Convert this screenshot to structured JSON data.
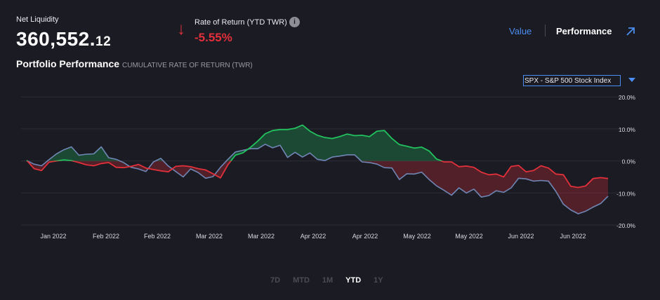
{
  "net_liquidity": {
    "label": "Net Liquidity",
    "value_main": "360,552.",
    "value_cents": "12"
  },
  "rate_of_return": {
    "label": "Rate of Return (YTD TWR)",
    "value": "-5.55%",
    "arrow": "↓",
    "info_icon": "i"
  },
  "view_toggle": {
    "value_label": "Value",
    "performance_label": "Performance"
  },
  "section": {
    "title": "Portfolio Performance",
    "subtitle": "CUMULATIVE RATE OF RETURN (TWR)"
  },
  "benchmark": {
    "selected": "SPX - S&P 500 Stock Index"
  },
  "ranges": [
    {
      "label": "7D",
      "active": false
    },
    {
      "label": "MTD",
      "active": false
    },
    {
      "label": "1M",
      "active": false
    },
    {
      "label": "YTD",
      "active": true
    },
    {
      "label": "1Y",
      "active": false
    }
  ],
  "colors": {
    "portfolio_up": "#22c15e",
    "portfolio_down": "#e2303b",
    "benchmark": "#6f86b5",
    "accent": "#4a8ef1"
  },
  "chart_data": {
    "type": "line",
    "x_tick_labels": [
      "Jan 2022",
      "Feb 2022",
      "Feb 2022",
      "Mar 2022",
      "Mar 2022",
      "Apr 2022",
      "Apr 2022",
      "May 2022",
      "May 2022",
      "Jun 2022",
      "Jun 2022"
    ],
    "y_tick_labels": [
      "20.0%",
      "10.0%",
      "0.0%",
      "-10.0%",
      "-20.0%"
    ],
    "ylim": [
      -20,
      20
    ],
    "grid": true,
    "series": [
      {
        "name": "Portfolio",
        "values": [
          0.2,
          -2.4,
          -3,
          -0.4,
          0,
          0.3,
          0.1,
          -0.5,
          -1.2,
          -1.5,
          -0.8,
          -0.5,
          -2,
          -2.1,
          -1.7,
          -1.1,
          -2.2,
          -2.7,
          -3.1,
          -3.4,
          -1.7,
          -1.5,
          -1.8,
          -2.4,
          -2.8,
          -4,
          -5.3,
          -1.2,
          1.8,
          2.5,
          4.2,
          6.2,
          8.5,
          9.5,
          9.8,
          9.8,
          10.2,
          11.2,
          9.3,
          8,
          7.3,
          7,
          7.6,
          8.4,
          7.9,
          8,
          7.6,
          9.3,
          9.5,
          7,
          5.1,
          4.6,
          4,
          4.3,
          3.1,
          0.6,
          -0.3,
          -0.3,
          -1.8,
          -1.6,
          -2,
          -3.5,
          -4.3,
          -4.1,
          -5,
          -1.7,
          -1.4,
          -3.4,
          -3,
          -1.5,
          -2.2,
          -4.1,
          -4.3,
          -7.9,
          -8.3,
          -7.8,
          -5.5,
          -5.2,
          -5.5
        ]
      },
      {
        "name": "SPX - S&P 500 Stock Index",
        "values": [
          0.1,
          -1,
          -1.5,
          0.4,
          2.2,
          3.5,
          4.4,
          1.8,
          2.1,
          2.2,
          4.4,
          1,
          0.5,
          -0.5,
          -2,
          -2.5,
          -3.3,
          -0.3,
          0.8,
          -1.6,
          -3.3,
          -5,
          -2.5,
          -3.6,
          -5.4,
          -4.9,
          -2,
          0.5,
          2.8,
          3.3,
          3.8,
          3.8,
          5.2,
          4.1,
          4.9,
          1.1,
          2.7,
          1.2,
          2.5,
          0.5,
          0.1,
          1.2,
          1.5,
          1.9,
          1.9,
          -0.3,
          -0.5,
          -1,
          -2.1,
          -2.2,
          -5.8,
          -4,
          -4.1,
          -3.5,
          -5.8,
          -7.8,
          -9.2,
          -10.7,
          -8.4,
          -10,
          -8.8,
          -11.3,
          -10.8,
          -9.3,
          -9.8,
          -8.4,
          -5.4,
          -5.6,
          -6.3,
          -6.1,
          -6.3,
          -9.5,
          -13.5,
          -15.3,
          -16.5,
          -15.7,
          -14.4,
          -13.3,
          -11
        ]
      }
    ]
  }
}
